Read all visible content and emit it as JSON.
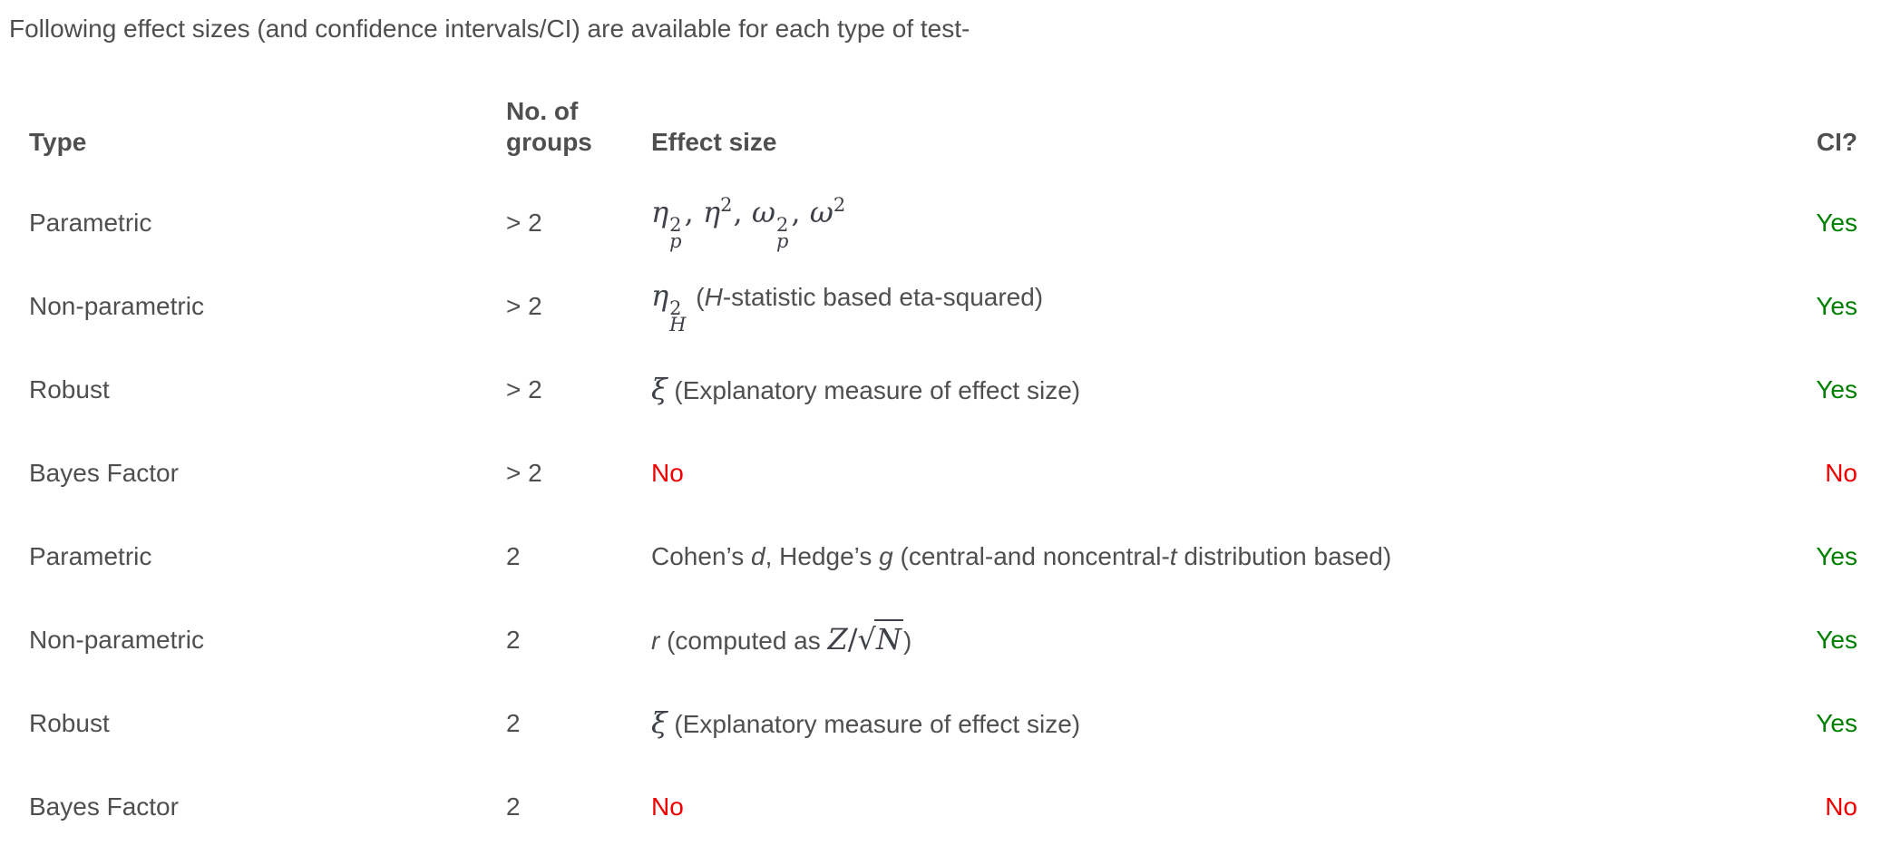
{
  "intro": "Following effect sizes (and confidence intervals/CI) are available for each type of test-",
  "colors": {
    "body_text": "#4f4f4f",
    "math_text": "#3e4248",
    "yes": "#008000",
    "no": "#ee0000"
  },
  "table": {
    "headers": {
      "type": "Type",
      "groups": "No. of groups",
      "effect": "Effect size",
      "ci": "CI?"
    },
    "rows": [
      {
        "type": "Parametric",
        "groups": "> 2",
        "effect": [
          {
            "kind": "math",
            "v": "η",
            "sup": "2",
            "sub": "p"
          },
          {
            "kind": "mtext",
            "v": ", "
          },
          {
            "kind": "math",
            "v": "η",
            "sup": "2"
          },
          {
            "kind": "mtext",
            "v": ", "
          },
          {
            "kind": "math",
            "v": "ω",
            "sup": "2",
            "sub": "p"
          },
          {
            "kind": "mtext",
            "v": ", "
          },
          {
            "kind": "math",
            "v": "ω",
            "sup": "2"
          }
        ],
        "ci": "Yes"
      },
      {
        "type": "Non-parametric",
        "groups": "> 2",
        "effect": [
          {
            "kind": "math",
            "v": "η",
            "sup": "2",
            "sub": "H"
          },
          {
            "kind": "text",
            "v": " ("
          },
          {
            "kind": "it",
            "v": "H"
          },
          {
            "kind": "text",
            "v": "-statistic based eta-squared)"
          }
        ],
        "ci": "Yes"
      },
      {
        "type": "Robust",
        "groups": "> 2",
        "effect": [
          {
            "kind": "math",
            "v": "ξ"
          },
          {
            "kind": "text",
            "v": " (Explanatory measure of effect size)"
          }
        ],
        "ci": "Yes"
      },
      {
        "type": "Bayes Factor",
        "groups": "> 2",
        "effect": [
          {
            "kind": "no",
            "v": "No"
          }
        ],
        "ci": "No"
      },
      {
        "type": "Parametric",
        "groups": "2",
        "effect": [
          {
            "kind": "text",
            "v": "Cohen’s "
          },
          {
            "kind": "it",
            "v": "d"
          },
          {
            "kind": "text",
            "v": ", Hedge’s "
          },
          {
            "kind": "it",
            "v": "g"
          },
          {
            "kind": "text",
            "v": " (central-and noncentral-"
          },
          {
            "kind": "it",
            "v": "t"
          },
          {
            "kind": "text",
            "v": " distribution based)"
          }
        ],
        "ci": "Yes"
      },
      {
        "type": "Non-parametric",
        "groups": "2",
        "effect": [
          {
            "kind": "it",
            "v": "r"
          },
          {
            "kind": "text",
            "v": " (computed as "
          },
          {
            "kind": "math",
            "v": "Z"
          },
          {
            "kind": "mtext",
            "v": "/"
          },
          {
            "kind": "sqrt",
            "v": "N"
          },
          {
            "kind": "text",
            "v": ")"
          }
        ],
        "ci": "Yes"
      },
      {
        "type": "Robust",
        "groups": "2",
        "effect": [
          {
            "kind": "math",
            "v": "ξ"
          },
          {
            "kind": "text",
            "v": " (Explanatory measure of effect size)"
          }
        ],
        "ci": "Yes"
      },
      {
        "type": "Bayes Factor",
        "groups": "2",
        "effect": [
          {
            "kind": "no",
            "v": "No"
          }
        ],
        "ci": "No"
      }
    ]
  }
}
